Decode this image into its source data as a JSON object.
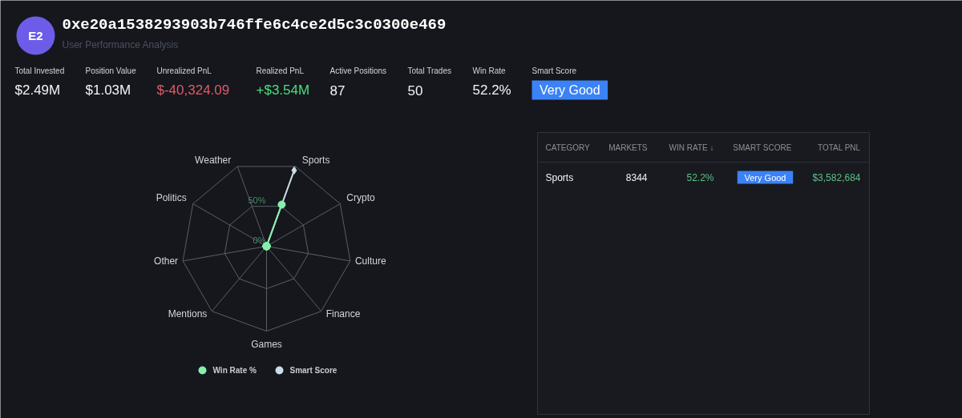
{
  "chart_data": {
    "type": "radar",
    "title": "0xe20a1538293903b746ffe6c4ce2d5c3c0300e469",
    "subtitle": "User Performance Analysis",
    "categories": [
      "Sports",
      "Crypto",
      "Culture",
      "Finance",
      "Games",
      "Mentions",
      "Other",
      "Politics",
      "Weather"
    ],
    "series": [
      {
        "name": "Win Rate %",
        "color": "#86efac",
        "values": [
          52.2,
          0,
          0,
          0,
          0,
          0,
          0,
          0,
          0
        ],
        "marker": "circle"
      },
      {
        "name": "Smart Score",
        "color": "#cbdde6",
        "values": [
          95,
          0,
          0,
          0,
          0,
          0,
          0,
          0,
          0
        ],
        "marker": "diamond"
      }
    ],
    "ylim": [
      0,
      100
    ],
    "yticks": [
      {
        "value": 0,
        "label": "0%"
      },
      {
        "value": 50,
        "label": "50%"
      }
    ],
    "grid": true,
    "legend": "bottom",
    "annotations": [
      "E2",
      "Total Invested",
      "$2.49M",
      "Position Value",
      "$1.03M",
      "Unrealized PnL",
      "$-40,324.09",
      "Realized PnL",
      "+$3.54M",
      "Active Positions",
      "87",
      "Total Trades",
      "50",
      "Win Rate",
      "52.2%",
      "Smart Score",
      "Very Good",
      "CATEGORY",
      "MARKETS",
      "WIN RATE ↓",
      "SMART SCORE",
      "TOTAL PNL",
      "Sports",
      "8344",
      "52.2%",
      "Very Good",
      "$3,582,684"
    ]
  }
}
